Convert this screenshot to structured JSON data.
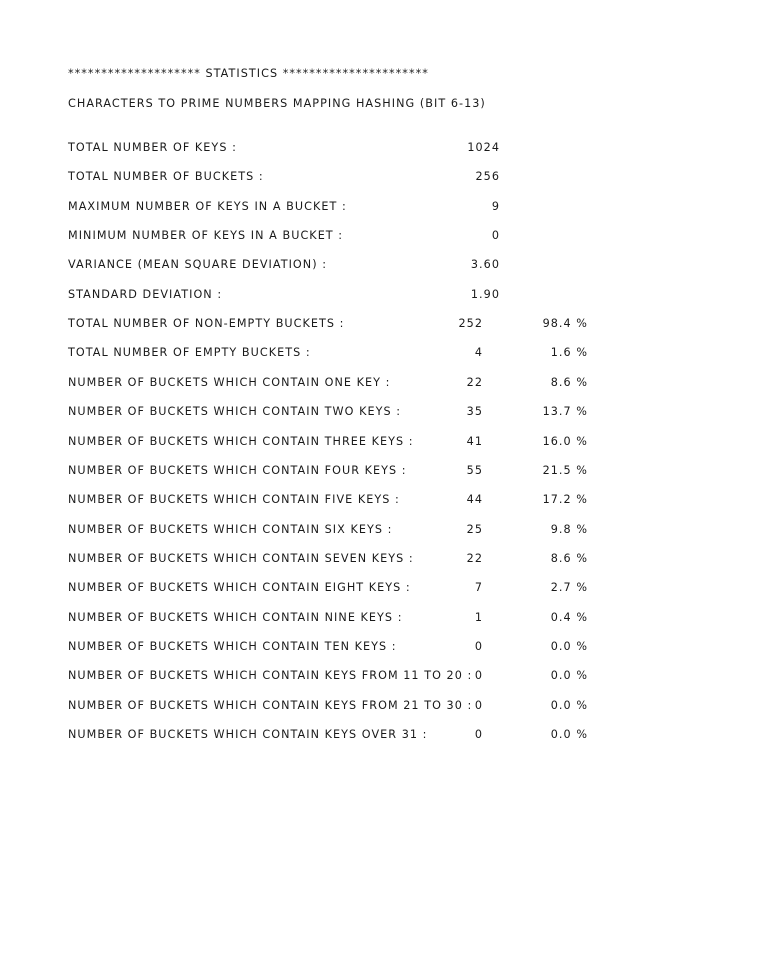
{
  "header": {
    "banner": "******************** STATISTICS **********************",
    "subtitle": "CHARACTERS TO PRIME NUMBERS MAPPING HASHING (BIT 6-13)"
  },
  "summary": [
    {
      "label": "TOTAL NUMBER OF KEYS :",
      "value": "1024"
    },
    {
      "label": "TOTAL NUMBER OF BUCKETS :",
      "value": "256"
    },
    {
      "label": "MAXIMUM NUMBER OF KEYS IN A BUCKET :",
      "value": "9"
    },
    {
      "label": "MINIMUM NUMBER OF KEYS IN A BUCKET :",
      "value": "0"
    },
    {
      "label": "VARIANCE (MEAN SQUARE DEVIATION) :",
      "value": "3.60"
    },
    {
      "label": "STANDARD DEVIATION :",
      "value": "1.90"
    }
  ],
  "distribution": [
    {
      "label": "TOTAL NUMBER OF NON-EMPTY BUCKETS :",
      "count": "252",
      "percent": "98.4 %"
    },
    {
      "label": "TOTAL NUMBER OF EMPTY BUCKETS :",
      "count": "4",
      "percent": "1.6 %"
    },
    {
      "label": "NUMBER OF BUCKETS WHICH CONTAIN ONE KEY :",
      "count": "22",
      "percent": "8.6 %"
    },
    {
      "label": "NUMBER OF BUCKETS WHICH CONTAIN TWO KEYS :",
      "count": "35",
      "percent": "13.7 %"
    },
    {
      "label": "NUMBER OF BUCKETS WHICH CONTAIN THREE KEYS :",
      "count": "41",
      "percent": "16.0 %"
    },
    {
      "label": "NUMBER OF BUCKETS WHICH CONTAIN FOUR KEYS :",
      "count": "55",
      "percent": "21.5 %"
    },
    {
      "label": "NUMBER OF BUCKETS WHICH CONTAIN FIVE KEYS :",
      "count": "44",
      "percent": "17.2 %"
    },
    {
      "label": "NUMBER OF BUCKETS WHICH CONTAIN SIX KEYS :",
      "count": "25",
      "percent": "9.8 %"
    },
    {
      "label": "NUMBER OF BUCKETS WHICH CONTAIN SEVEN KEYS :",
      "count": "22",
      "percent": "8.6 %"
    },
    {
      "label": "NUMBER OF BUCKETS WHICH CONTAIN EIGHT KEYS :",
      "count": "7",
      "percent": "2.7 %"
    },
    {
      "label": "NUMBER OF BUCKETS WHICH CONTAIN NINE KEYS :",
      "count": "1",
      "percent": "0.4 %"
    },
    {
      "label": "NUMBER OF BUCKETS WHICH CONTAIN TEN KEYS :",
      "count": "0",
      "percent": "0.0 %"
    },
    {
      "label": "NUMBER OF BUCKETS WHICH CONTAIN KEYS FROM 11 TO 20 :",
      "count": "0",
      "percent": "0.0 %"
    },
    {
      "label": "NUMBER OF BUCKETS WHICH CONTAIN KEYS FROM 21 TO 30 :",
      "count": "0",
      "percent": "0.0 %"
    },
    {
      "label": "NUMBER OF BUCKETS WHICH CONTAIN KEYS OVER 31 :",
      "count": "0",
      "percent": "0.0 %"
    }
  ]
}
